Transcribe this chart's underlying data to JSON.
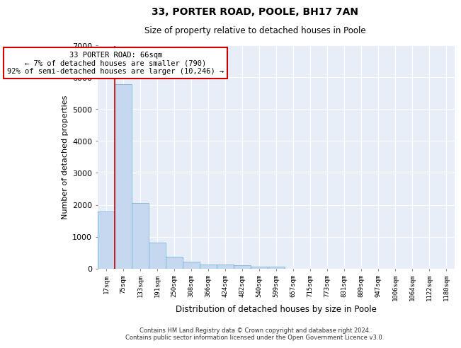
{
  "title": "33, PORTER ROAD, POOLE, BH17 7AN",
  "subtitle": "Size of property relative to detached houses in Poole",
  "xlabel": "Distribution of detached houses by size in Poole",
  "ylabel": "Number of detached properties",
  "footer_line1": "Contains HM Land Registry data © Crown copyright and database right 2024.",
  "footer_line2": "Contains public sector information licensed under the Open Government Licence v3.0.",
  "annotation_line1": "33 PORTER ROAD: 66sqm",
  "annotation_line2": "← 7% of detached houses are smaller (790)",
  "annotation_line3": "92% of semi-detached houses are larger (10,246) →",
  "bar_color": "#c5d8f0",
  "bar_edge_color": "#6aaad4",
  "highlight_line_color": "#cc0000",
  "annotation_box_color": "#cc0000",
  "background_color": "#e8eef8",
  "categories": [
    "17sqm",
    "75sqm",
    "133sqm",
    "191sqm",
    "250sqm",
    "308sqm",
    "366sqm",
    "424sqm",
    "482sqm",
    "540sqm",
    "599sqm",
    "657sqm",
    "715sqm",
    "773sqm",
    "831sqm",
    "889sqm",
    "947sqm",
    "1006sqm",
    "1064sqm",
    "1122sqm",
    "1180sqm"
  ],
  "values": [
    1780,
    5780,
    2060,
    820,
    360,
    220,
    130,
    120,
    110,
    65,
    65,
    0,
    0,
    0,
    0,
    0,
    0,
    0,
    0,
    0,
    0
  ],
  "red_line_x": 0.5,
  "ylim": [
    0,
    7000
  ],
  "yticks": [
    0,
    1000,
    2000,
    3000,
    4000,
    5000,
    6000,
    7000
  ]
}
